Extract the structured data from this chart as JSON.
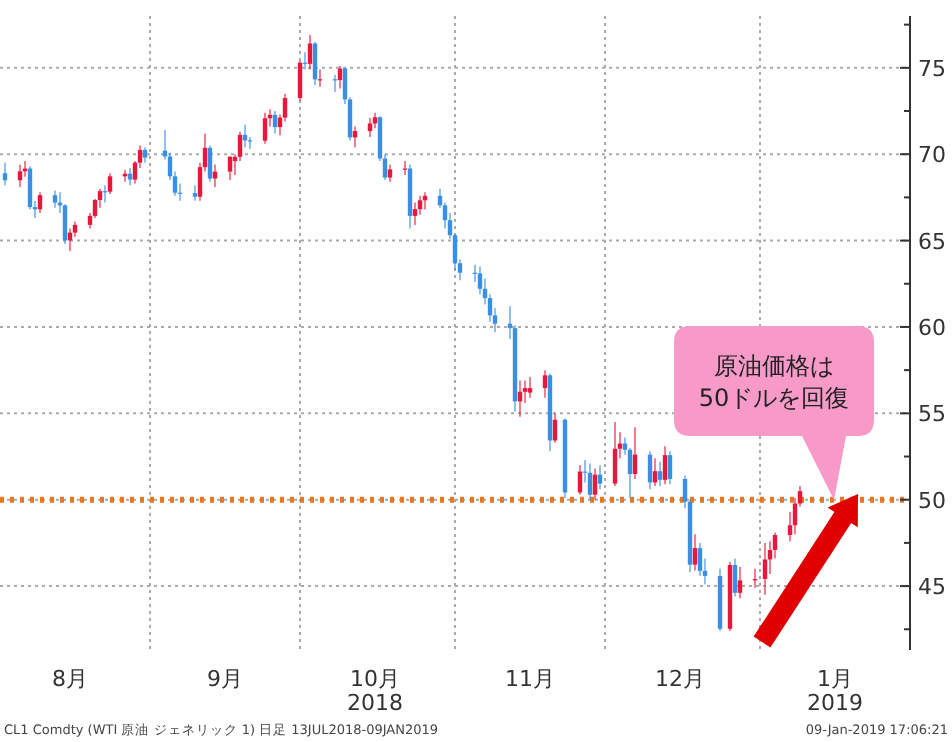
{
  "chart_data": {
    "type": "candlestick",
    "x": [
      "2018-08-03",
      "2018-08-06",
      "2018-08-07",
      "2018-08-08",
      "2018-08-09",
      "2018-08-10",
      "2018-08-13",
      "2018-08-14",
      "2018-08-15",
      "2018-08-16",
      "2018-08-17",
      "2018-08-20",
      "2018-08-21",
      "2018-08-22",
      "2018-08-23",
      "2018-08-24",
      "2018-08-27",
      "2018-08-28",
      "2018-08-29",
      "2018-08-30",
      "2018-08-31",
      "2018-09-04",
      "2018-09-05",
      "2018-09-06",
      "2018-09-07",
      "2018-09-10",
      "2018-09-11",
      "2018-09-12",
      "2018-09-13",
      "2018-09-14",
      "2018-09-17",
      "2018-09-18",
      "2018-09-19",
      "2018-09-20",
      "2018-09-21",
      "2018-09-24",
      "2018-09-25",
      "2018-09-26",
      "2018-09-27",
      "2018-09-28",
      "2018-10-01",
      "2018-10-02",
      "2018-10-03",
      "2018-10-04",
      "2018-10-05",
      "2018-10-08",
      "2018-10-09",
      "2018-10-10",
      "2018-10-11",
      "2018-10-12",
      "2018-10-15",
      "2018-10-16",
      "2018-10-17",
      "2018-10-18",
      "2018-10-19",
      "2018-10-22",
      "2018-10-23",
      "2018-10-24",
      "2018-10-25",
      "2018-10-26",
      "2018-10-29",
      "2018-10-30",
      "2018-10-31",
      "2018-11-01",
      "2018-11-02",
      "2018-11-05",
      "2018-11-06",
      "2018-11-07",
      "2018-11-08",
      "2018-11-09",
      "2018-11-12",
      "2018-11-13",
      "2018-11-14",
      "2018-11-15",
      "2018-11-16",
      "2018-11-19",
      "2018-11-20",
      "2018-11-21",
      "2018-11-23",
      "2018-11-26",
      "2018-11-27",
      "2018-11-28",
      "2018-11-29",
      "2018-11-30",
      "2018-12-03",
      "2018-12-04",
      "2018-12-05",
      "2018-12-06",
      "2018-12-07",
      "2018-12-10",
      "2018-12-11",
      "2018-12-12",
      "2018-12-13",
      "2018-12-14",
      "2018-12-17",
      "2018-12-18",
      "2018-12-19",
      "2018-12-20",
      "2018-12-21",
      "2018-12-24",
      "2018-12-26",
      "2018-12-27",
      "2018-12-28",
      "2018-12-31",
      "2019-01-02",
      "2019-01-03",
      "2019-01-04",
      "2019-01-07",
      "2019-01-08",
      "2019-01-09"
    ],
    "ohlc": [
      [
        68.9,
        69.5,
        68.2,
        68.49
      ],
      [
        68.49,
        69.4,
        68.1,
        69.01
      ],
      [
        69.01,
        69.6,
        68.7,
        69.17
      ],
      [
        69.17,
        69.3,
        66.8,
        66.94
      ],
      [
        66.94,
        67.3,
        66.3,
        66.81
      ],
      [
        66.81,
        67.8,
        66.6,
        67.63
      ],
      [
        67.63,
        67.9,
        66.9,
        67.2
      ],
      [
        67.2,
        67.8,
        66.6,
        67.04
      ],
      [
        67.04,
        67.1,
        64.8,
        65.01
      ],
      [
        65.01,
        65.7,
        64.4,
        65.46
      ],
      [
        65.46,
        66.1,
        65.2,
        65.91
      ],
      [
        65.91,
        66.6,
        65.7,
        66.43
      ],
      [
        66.43,
        67.4,
        66.3,
        67.35
      ],
      [
        67.35,
        68.0,
        66.9,
        67.86
      ],
      [
        67.86,
        68.2,
        67.2,
        67.83
      ],
      [
        67.83,
        68.9,
        67.7,
        68.72
      ],
      [
        68.72,
        69.1,
        68.4,
        68.87
      ],
      [
        68.87,
        69.2,
        68.2,
        68.53
      ],
      [
        68.53,
        69.6,
        68.3,
        69.51
      ],
      [
        69.51,
        70.5,
        69.2,
        70.25
      ],
      [
        70.25,
        70.4,
        69.5,
        69.8
      ],
      [
        70.2,
        71.4,
        69.7,
        69.87
      ],
      [
        69.87,
        70.1,
        68.5,
        68.72
      ],
      [
        68.72,
        69.0,
        67.6,
        67.77
      ],
      [
        67.77,
        68.3,
        67.3,
        67.75
      ],
      [
        67.75,
        68.2,
        67.3,
        67.54
      ],
      [
        67.54,
        69.5,
        67.3,
        69.25
      ],
      [
        69.25,
        71.2,
        69.0,
        70.37
      ],
      [
        70.37,
        70.5,
        68.4,
        68.59
      ],
      [
        68.59,
        69.4,
        68.1,
        68.99
      ],
      [
        68.99,
        69.9,
        68.5,
        69.85
      ],
      [
        69.6,
        70.0,
        68.8,
        69.85
      ],
      [
        69.85,
        71.3,
        69.6,
        71.12
      ],
      [
        71.12,
        71.7,
        70.4,
        70.8
      ],
      [
        70.8,
        71.0,
        70.3,
        70.78
      ],
      [
        70.78,
        72.4,
        70.6,
        72.08
      ],
      [
        72.08,
        72.6,
        71.6,
        72.28
      ],
      [
        72.28,
        72.5,
        71.2,
        71.57
      ],
      [
        71.57,
        72.3,
        71.1,
        72.12
      ],
      [
        72.12,
        73.5,
        71.9,
        73.25
      ],
      [
        73.25,
        75.4,
        73.1,
        75.3
      ],
      [
        75.3,
        75.9,
        74.9,
        75.23
      ],
      [
        75.23,
        76.9,
        74.9,
        76.41
      ],
      [
        76.41,
        76.5,
        74.0,
        74.33
      ],
      [
        74.33,
        74.9,
        73.9,
        74.34
      ],
      [
        74.34,
        74.6,
        73.6,
        74.29
      ],
      [
        74.29,
        75.1,
        73.8,
        74.96
      ],
      [
        74.96,
        75.0,
        72.9,
        73.17
      ],
      [
        73.17,
        73.3,
        70.8,
        70.97
      ],
      [
        70.97,
        71.6,
        70.4,
        71.34
      ],
      [
        71.34,
        72.1,
        71.0,
        71.78
      ],
      [
        71.78,
        72.4,
        71.5,
        72.14
      ],
      [
        72.14,
        72.2,
        69.6,
        69.75
      ],
      [
        69.75,
        70.0,
        68.5,
        68.65
      ],
      [
        68.65,
        69.4,
        68.4,
        69.12
      ],
      [
        69.12,
        69.6,
        68.8,
        69.17
      ],
      [
        69.17,
        69.4,
        65.7,
        66.43
      ],
      [
        66.43,
        67.2,
        65.9,
        66.82
      ],
      [
        66.82,
        67.6,
        66.5,
        67.33
      ],
      [
        67.33,
        67.8,
        66.8,
        67.59
      ],
      [
        67.59,
        68.0,
        66.9,
        67.04
      ],
      [
        67.04,
        67.2,
        65.7,
        66.18
      ],
      [
        66.18,
        66.6,
        65.1,
        65.31
      ],
      [
        65.31,
        65.4,
        63.3,
        63.69
      ],
      [
        63.69,
        63.9,
        62.7,
        63.14
      ],
      [
        63.14,
        63.6,
        62.6,
        63.1
      ],
      [
        63.1,
        63.5,
        61.9,
        62.21
      ],
      [
        62.21,
        62.8,
        61.3,
        61.67
      ],
      [
        61.67,
        61.9,
        60.3,
        60.67
      ],
      [
        60.67,
        61.1,
        59.7,
        60.19
      ],
      [
        60.19,
        61.2,
        59.3,
        59.93
      ],
      [
        59.93,
        60.1,
        55.1,
        55.69
      ],
      [
        55.69,
        56.9,
        54.8,
        56.25
      ],
      [
        56.25,
        56.9,
        55.6,
        56.46
      ],
      [
        56.2,
        57.1,
        55.9,
        56.46
      ],
      [
        56.46,
        57.5,
        55.9,
        57.2
      ],
      [
        57.2,
        57.3,
        52.8,
        53.43
      ],
      [
        53.43,
        55.0,
        53.3,
        54.63
      ],
      [
        54.63,
        54.7,
        50.1,
        50.42
      ],
      [
        50.42,
        52.0,
        50.3,
        51.63
      ],
      [
        51.63,
        52.3,
        51.0,
        51.56
      ],
      [
        51.56,
        52.1,
        50.0,
        50.29
      ],
      [
        50.29,
        51.8,
        50.0,
        51.45
      ],
      [
        51.45,
        52.0,
        50.6,
        50.93
      ],
      [
        50.93,
        54.5,
        50.8,
        52.95
      ],
      [
        52.95,
        53.9,
        52.4,
        53.25
      ],
      [
        53.25,
        53.6,
        52.6,
        52.89
      ],
      [
        52.89,
        53.0,
        50.1,
        51.49
      ],
      [
        51.49,
        54.2,
        51.2,
        52.61
      ],
      [
        52.61,
        52.8,
        50.6,
        51.0
      ],
      [
        51.0,
        52.4,
        50.8,
        51.65
      ],
      [
        51.65,
        52.2,
        50.8,
        51.15
      ],
      [
        51.15,
        53.1,
        50.9,
        52.58
      ],
      [
        52.58,
        52.8,
        50.9,
        51.2
      ],
      [
        51.2,
        51.4,
        49.5,
        49.88
      ],
      [
        49.88,
        50.0,
        45.8,
        46.24
      ],
      [
        46.24,
        48.0,
        45.9,
        47.2
      ],
      [
        47.2,
        47.5,
        45.6,
        45.88
      ],
      [
        45.88,
        46.6,
        45.1,
        45.59
      ],
      [
        45.59,
        46.0,
        42.4,
        42.53
      ],
      [
        42.53,
        46.4,
        42.4,
        46.22
      ],
      [
        46.22,
        46.6,
        44.4,
        44.61
      ],
      [
        44.61,
        46.1,
        44.3,
        45.33
      ],
      [
        45.33,
        46.0,
        44.9,
        45.41
      ],
      [
        45.41,
        47.5,
        44.5,
        46.54
      ],
      [
        46.54,
        47.6,
        45.7,
        47.09
      ],
      [
        47.09,
        48.1,
        46.6,
        47.96
      ],
      [
        47.96,
        49.3,
        47.6,
        48.52
      ],
      [
        48.52,
        50.1,
        48.0,
        49.78
      ],
      [
        49.78,
        50.8,
        49.6,
        50.5
      ]
    ],
    "colors": [
      "#3b8fe3",
      "#e8173c",
      "#e8173c",
      "#3b8fe3",
      "#3b8fe3",
      "#e8173c",
      "#3b8fe3",
      "#3b8fe3",
      "#3b8fe3",
      "#e8173c",
      "#e8173c",
      "#e8173c",
      "#e8173c",
      "#e8173c",
      "#3b8fe3",
      "#e8173c",
      "#e8173c",
      "#3b8fe3",
      "#e8173c",
      "#e8173c",
      "#3b8fe3",
      "#3b8fe3",
      "#3b8fe3",
      "#3b8fe3",
      "#3b8fe3",
      "#3b8fe3",
      "#e8173c",
      "#e8173c",
      "#3b8fe3",
      "#e8173c",
      "#e8173c",
      "#e8173c",
      "#e8173c",
      "#3b8fe3",
      "#3b8fe3",
      "#e8173c",
      "#e8173c",
      "#3b8fe3",
      "#e8173c",
      "#e8173c",
      "#e8173c",
      "#3b8fe3",
      "#e8173c",
      "#3b8fe3",
      "#e8173c",
      "#3b8fe3",
      "#e8173c",
      "#3b8fe3",
      "#3b8fe3",
      "#e8173c",
      "#e8173c",
      "#e8173c",
      "#3b8fe3",
      "#3b8fe3",
      "#e8173c",
      "#e8173c",
      "#3b8fe3",
      "#e8173c",
      "#e8173c",
      "#e8173c",
      "#3b8fe3",
      "#3b8fe3",
      "#3b8fe3",
      "#3b8fe3",
      "#3b8fe3",
      "#3b8fe3",
      "#3b8fe3",
      "#3b8fe3",
      "#3b8fe3",
      "#3b8fe3",
      "#3b8fe3",
      "#3b8fe3",
      "#e8173c",
      "#e8173c",
      "#e8173c",
      "#e8173c",
      "#3b8fe3",
      "#e8173c",
      "#3b8fe3",
      "#e8173c",
      "#3b8fe3",
      "#3b8fe3",
      "#e8173c",
      "#3b8fe3",
      "#e8173c",
      "#e8173c",
      "#3b8fe3",
      "#3b8fe3",
      "#e8173c",
      "#3b8fe3",
      "#e8173c",
      "#3b8fe3",
      "#e8173c",
      "#3b8fe3",
      "#3b8fe3",
      "#3b8fe3",
      "#e8173c",
      "#3b8fe3",
      "#3b8fe3",
      "#3b8fe3",
      "#e8173c",
      "#3b8fe3",
      "#e8173c",
      "#e8173c",
      "#e8173c",
      "#e8173c",
      "#e8173c",
      "#e8173c",
      "#e8173c",
      "#e8173c"
    ],
    "xlim": [
      "2018-08-02",
      "2019-01-31"
    ],
    "xticks": [
      {
        "value": "2018-09-01",
        "label": null
      },
      {
        "value": "2018-10-01",
        "label": null
      },
      {
        "value": "2018-11-01",
        "label": null
      },
      {
        "value": "2018-12-01",
        "label": null
      },
      {
        "value": "2019-01-01",
        "label": null
      },
      {
        "value": "2018-08-16",
        "label": "8月"
      },
      {
        "value": "2018-09-16",
        "label": "9月"
      },
      {
        "value": "2018-10-16",
        "label": "10月\n2018"
      },
      {
        "value": "2018-11-16",
        "label": "11月"
      },
      {
        "value": "2018-12-16",
        "label": "12月"
      },
      {
        "value": "2019-01-16",
        "label": "1月\n2019"
      }
    ],
    "ylim": [
      41.3,
      78
    ],
    "yticks": [
      {
        "value": 42.5,
        "label": null
      },
      45,
      {
        "value": 47.5,
        "label": null
      },
      50,
      {
        "value": 52.5,
        "label": null
      },
      55,
      {
        "value": 57.5,
        "label": null
      },
      60,
      {
        "value": 62.5,
        "label": null
      },
      65,
      {
        "value": 67.5,
        "label": null
      },
      70,
      {
        "value": 72.5,
        "label": null
      },
      75,
      {
        "value": 77.5,
        "label": null
      }
    ],
    "grid": true,
    "ref_lines": [
      {
        "axis": "y",
        "value": 50,
        "color": "#e87722",
        "line_style": "dotted"
      }
    ],
    "annotations": [
      "原油価格は\n50ドルを回復",
      "CL1 Comdty (WTI 原油 ジェネリック 1) 日足 13JUL2018-09JAN2019",
      "09-Jan-2019 17:06:21"
    ]
  }
}
